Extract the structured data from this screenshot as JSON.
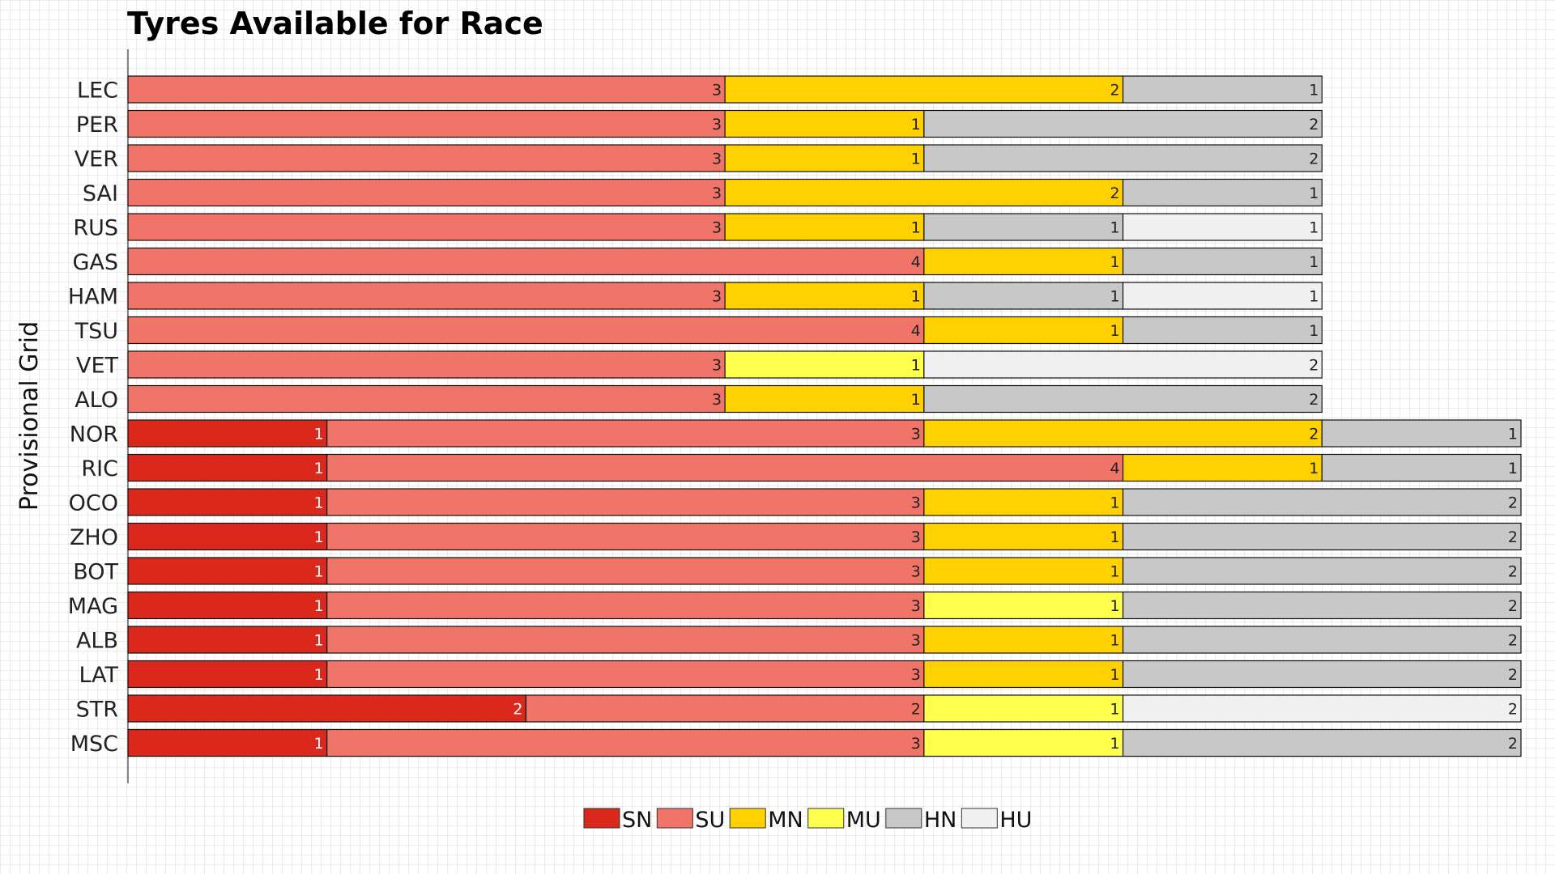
{
  "chart_data": {
    "type": "bar",
    "orientation": "horizontal",
    "stacked": true,
    "title": "Tyres Available for Race",
    "ylabel": "Provisional Grid",
    "xlabel": "",
    "categories": [
      "LEC",
      "PER",
      "VER",
      "SAI",
      "RUS",
      "GAS",
      "HAM",
      "TSU",
      "VET",
      "ALO",
      "NOR",
      "RIC",
      "OCO",
      "ZHO",
      "BOT",
      "MAG",
      "ALB",
      "LAT",
      "STR",
      "MSC"
    ],
    "series": [
      {
        "name": "SN",
        "color": "#da291c",
        "values": [
          0,
          0,
          0,
          0,
          0,
          0,
          0,
          0,
          0,
          0,
          1,
          1,
          1,
          1,
          1,
          1,
          1,
          1,
          2,
          1
        ]
      },
      {
        "name": "SU",
        "color": "#f07468",
        "values": [
          3,
          3,
          3,
          3,
          3,
          4,
          3,
          4,
          3,
          3,
          3,
          4,
          3,
          3,
          3,
          3,
          3,
          3,
          2,
          3
        ]
      },
      {
        "name": "MN",
        "color": "#ffd100",
        "values": [
          2,
          1,
          1,
          2,
          1,
          1,
          1,
          1,
          0,
          1,
          2,
          1,
          1,
          1,
          1,
          0,
          1,
          1,
          0,
          0
        ]
      },
      {
        "name": "MU",
        "color": "#ffff4d",
        "values": [
          0,
          0,
          0,
          0,
          0,
          0,
          0,
          0,
          1,
          0,
          0,
          0,
          0,
          0,
          0,
          1,
          0,
          0,
          1,
          1
        ]
      },
      {
        "name": "HN",
        "color": "#c8c8c8",
        "values": [
          1,
          2,
          2,
          1,
          1,
          1,
          1,
          1,
          0,
          2,
          1,
          1,
          2,
          2,
          2,
          2,
          2,
          2,
          0,
          2
        ]
      },
      {
        "name": "HU",
        "color": "#f0f0f0",
        "values": [
          0,
          0,
          0,
          0,
          1,
          0,
          1,
          0,
          2,
          0,
          0,
          0,
          0,
          0,
          0,
          0,
          0,
          0,
          2,
          0
        ]
      }
    ],
    "xlim": [
      0,
      7
    ],
    "grid": false,
    "legend_position": "bottom-center"
  }
}
